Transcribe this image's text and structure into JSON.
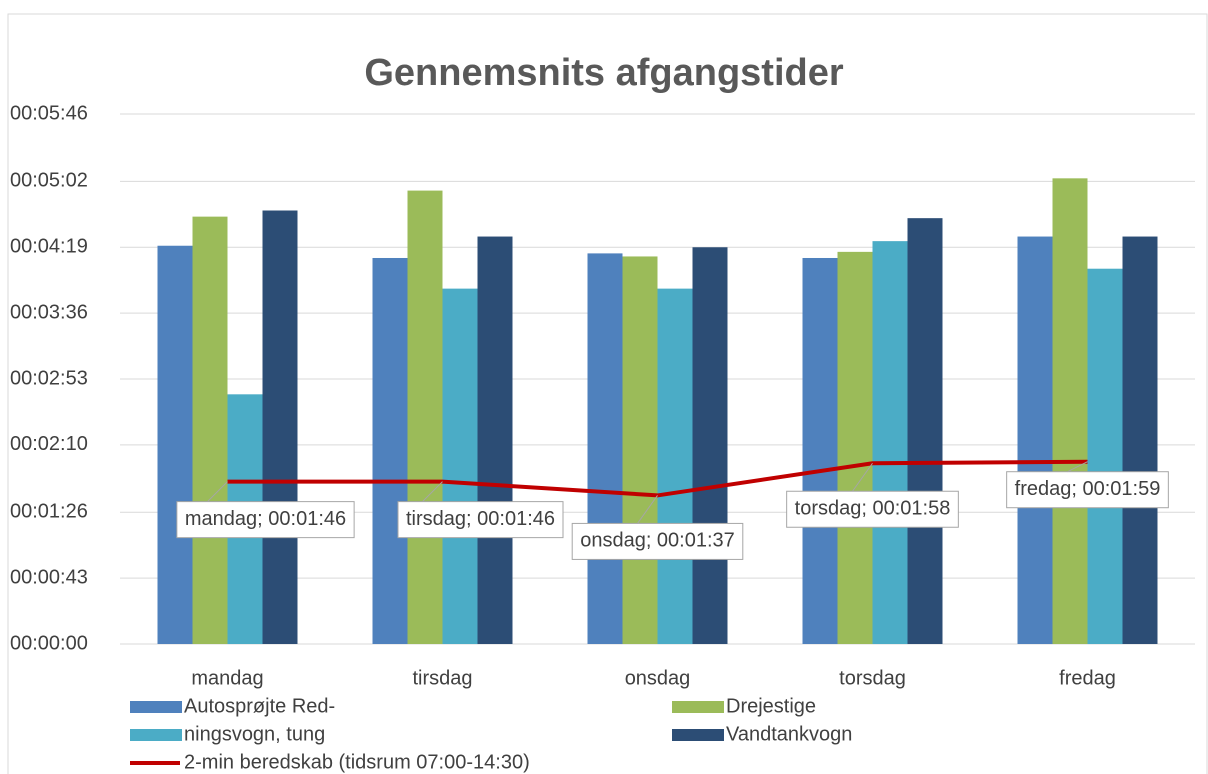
{
  "chart_data": {
    "type": "bar_line",
    "title": "Gennemsnits afgangstider",
    "categories": [
      "mandag",
      "tirsdag",
      "onsdag",
      "torsdag",
      "fredag"
    ],
    "ylim": [
      0,
      346
    ],
    "yticks": [
      {
        "value": 0,
        "label": "00:00:00"
      },
      {
        "value": 43,
        "label": "00:00:43"
      },
      {
        "value": 86,
        "label": "00:01:26"
      },
      {
        "value": 130,
        "label": "00:02:10"
      },
      {
        "value": 173,
        "label": "00:02:53"
      },
      {
        "value": 216,
        "label": "00:03:36"
      },
      {
        "value": 259,
        "label": "00:04:19"
      },
      {
        "value": 302,
        "label": "00:05:02"
      },
      {
        "value": 346,
        "label": "00:05:46"
      }
    ],
    "grid": true,
    "series": [
      {
        "name": "Autosprøjte Red-",
        "type": "bar",
        "color": "#4f81bd",
        "values": [
          260,
          252,
          255,
          252,
          266
        ]
      },
      {
        "name": "ningsvogn, tung",
        "type": "bar",
        "color": "#4bacc6",
        "values": [
          163,
          232,
          232,
          263,
          245
        ]
      },
      {
        "name": "Drejestige",
        "type": "bar",
        "color": "#9bbb59",
        "values": [
          279,
          296,
          253,
          256,
          304
        ]
      },
      {
        "name": "Vandtankvogn",
        "type": "bar",
        "color": "#2c4d75",
        "values": [
          283,
          266,
          259,
          278,
          266
        ]
      },
      {
        "name": "2-min beredskab (tidsrum 07:00-14:30)",
        "type": "line",
        "color": "#c00000",
        "values": [
          106,
          106,
          97,
          118,
          119
        ],
        "value_labels": [
          "mandag; 00:01:46",
          "tirsdag; 00:01:46",
          "onsdag; 00:01:37",
          "torsdag; 00:01:58",
          "fredag; 00:01:59"
        ]
      }
    ]
  }
}
